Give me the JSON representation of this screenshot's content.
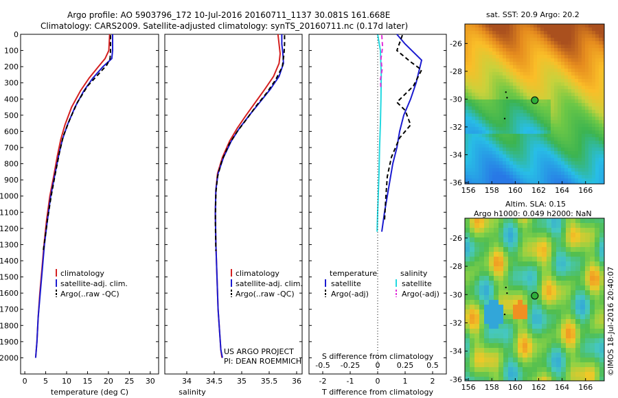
{
  "header": {
    "line1": "Argo profile: AO 5903796_172 10-Jul-2016 20160711_1137 30.081S 161.668E",
    "line2": "Climatology: CARS2009. Satellite-adjusted climatology: synTS_20160711.nc (0.17d later)"
  },
  "colors": {
    "climatology": "#d42020",
    "satellite": "#1a1ad0",
    "argo": "#000000",
    "sal_satellite": "#22d8e0",
    "sal_argo": "#e030d8"
  },
  "chart_data": [
    {
      "type": "line",
      "panel": "temperature",
      "xlabel": "temperature (deg C)",
      "ylabel": "",
      "xlim": [
        -1,
        32
      ],
      "ylim": [
        2100,
        0
      ],
      "xticks": [
        0,
        5,
        10,
        15,
        20,
        25,
        30
      ],
      "yticks": [
        0,
        100,
        200,
        300,
        400,
        500,
        600,
        700,
        800,
        900,
        1000,
        1100,
        1200,
        1300,
        1400,
        1500,
        1600,
        1700,
        1800,
        1900,
        2000
      ],
      "legend": [
        "climatology",
        "satellite-adj. clim.",
        "Argo(..raw -QC)"
      ],
      "series": [
        {
          "name": "climatology",
          "x": [
            20.3,
            20.1,
            19.2,
            17.6,
            15.4,
            13.3,
            11.2,
            9.6,
            8.6,
            7.8,
            6.9,
            6.0,
            5.2,
            4.6,
            4.1,
            3.6,
            3.2,
            2.9,
            2.6
          ],
          "y": [
            0,
            100,
            150,
            200,
            270,
            350,
            450,
            560,
            650,
            750,
            880,
            1000,
            1150,
            1300,
            1450,
            1600,
            1750,
            1900,
            2000
          ]
        },
        {
          "name": "satellite-adj. clim.",
          "x": [
            21.0,
            21.0,
            20.8,
            18.7,
            16.3,
            14.1,
            12.0,
            10.2,
            9.0,
            8.1,
            7.1,
            6.2,
            5.4,
            4.7,
            4.2,
            3.7,
            3.2,
            2.9,
            2.6
          ],
          "y": [
            0,
            100,
            150,
            200,
            270,
            350,
            450,
            560,
            650,
            750,
            880,
            1000,
            1150,
            1300,
            1450,
            1600,
            1750,
            1900,
            2000
          ]
        },
        {
          "name": "Argo(..raw -QC)",
          "x": [
            20.5,
            20.5,
            20.4,
            19.6,
            17.5,
            15.0,
            12.6,
            10.7,
            9.2,
            8.3,
            7.3,
            6.3,
            5.4,
            4.8,
            4.4
          ],
          "y": [
            5,
            100,
            150,
            190,
            250,
            320,
            420,
            530,
            630,
            730,
            860,
            1000,
            1150,
            1270,
            1340
          ]
        }
      ]
    },
    {
      "type": "line",
      "panel": "salinity",
      "xlabel": "salinity",
      "ylabel": "",
      "xlim": [
        33.6,
        36.1
      ],
      "ylim": [
        2100,
        0
      ],
      "xticks": [
        34,
        34.5,
        35,
        35.5,
        36
      ],
      "legend": [
        "climatology",
        "satellite-adj. clim.",
        "Argo(..raw -QC)"
      ],
      "series": [
        {
          "name": "climatology",
          "x": [
            35.66,
            35.68,
            35.7,
            35.68,
            35.58,
            35.42,
            35.25,
            35.08,
            34.92,
            34.78,
            34.65,
            34.56,
            34.53,
            34.52,
            34.53,
            34.55,
            34.57,
            34.6,
            34.62,
            34.64
          ],
          "y": [
            0,
            60,
            120,
            180,
            260,
            340,
            420,
            500,
            580,
            660,
            760,
            860,
            960,
            1100,
            1300,
            1500,
            1700,
            1850,
            1950,
            2000
          ]
        },
        {
          "name": "satellite-adj. clim.",
          "x": [
            35.73,
            35.73,
            35.75,
            35.76,
            35.68,
            35.52,
            35.33,
            35.14,
            34.96,
            34.81,
            34.67,
            34.57,
            34.53,
            34.52,
            34.53,
            34.55,
            34.57,
            34.6,
            34.62,
            34.65
          ],
          "y": [
            0,
            60,
            120,
            180,
            260,
            340,
            420,
            500,
            580,
            660,
            760,
            860,
            960,
            1100,
            1300,
            1500,
            1700,
            1850,
            1950,
            2000
          ]
        },
        {
          "name": "Argo(..raw -QC)",
          "x": [
            35.78,
            35.78,
            35.77,
            35.74,
            35.62,
            35.46,
            35.27,
            35.1,
            34.92,
            34.77,
            34.64,
            34.56,
            34.53,
            34.52,
            34.53
          ],
          "y": [
            5,
            60,
            120,
            200,
            280,
            360,
            440,
            520,
            600,
            680,
            780,
            880,
            980,
            1150,
            1340
          ]
        }
      ],
      "annotations": [
        "US ARGO PROJECT",
        "PI: DEAN ROEMMICH"
      ]
    },
    {
      "type": "line",
      "panel": "difference",
      "xlabel": "T difference from climatology",
      "xlabel_top": "S difference from climatology",
      "xlim": [
        -2.5,
        2.5
      ],
      "ylim": [
        2100,
        0
      ],
      "xticks": [
        -2,
        -1,
        0,
        1,
        2
      ],
      "xtick_labels": [
        "-2",
        "-1",
        "0",
        "1",
        "2"
      ],
      "sticks": [
        -0.5,
        -0.25,
        0,
        0.25,
        0.5
      ],
      "stick_labels": [
        "-0.5",
        "-0.25",
        "0",
        "0.25",
        "0.5"
      ],
      "legend": [
        {
          "group": "temperature",
          "items": [
            "satellite",
            "Argo(-adj)"
          ]
        },
        {
          "group": "salinity",
          "items": [
            "satellite",
            "Argo(-adj)"
          ]
        }
      ],
      "series": [
        {
          "name": "T satellite",
          "x": [
            0.7,
            1.0,
            1.6,
            1.4,
            1.2,
            0.95,
            0.8,
            0.7,
            0.55,
            0.45,
            0.35,
            0.25,
            0.15
          ],
          "y": [
            0,
            60,
            160,
            300,
            400,
            500,
            600,
            700,
            800,
            900,
            1000,
            1100,
            1220
          ]
        },
        {
          "name": "T Argo(-adj)",
          "x": [
            0.9,
            0.7,
            1.2,
            1.6,
            1.3,
            0.7,
            1.0,
            1.2,
            0.8,
            0.5,
            0.35,
            0.3,
            0.25
          ],
          "y": [
            5,
            100,
            170,
            220,
            320,
            420,
            470,
            560,
            640,
            760,
            880,
            1000,
            1150
          ]
        },
        {
          "name": "S satellite",
          "x": [
            0.0,
            0.1,
            0.13,
            0.12,
            0.1,
            0.07,
            0.05,
            0.02,
            0.0,
            -0.02
          ],
          "y": [
            0,
            100,
            250,
            400,
            550,
            700,
            850,
            1000,
            1100,
            1220
          ]
        },
        {
          "name": "S Argo(-adj)",
          "x": [
            0.15,
            0.18,
            0.12,
            0.16,
            0.1,
            0.12
          ],
          "y": [
            5,
            80,
            150,
            220,
            280,
            340
          ]
        }
      ]
    }
  ],
  "maps": {
    "sst": {
      "title": "sat. SST: 20.9 Argo: 20.2"
    },
    "sla": {
      "title_line1": "Altim. SLA: 0.15",
      "title_line2": "Argo h1000: 0.049 h2000: NaN"
    },
    "xlim": [
      155.7,
      167.6
    ],
    "ylim": [
      -36.1,
      -24.6
    ],
    "xticks": [
      156,
      158,
      160,
      162,
      164,
      166
    ],
    "yticks": [
      -26,
      -28,
      -30,
      -32,
      -34,
      -36
    ],
    "float_position": {
      "lon": 161.668,
      "lat": -30.081
    },
    "track": [
      {
        "lon": 159.2,
        "lat": -29.5
      },
      {
        "lon": 159.3,
        "lat": -29.9
      },
      {
        "lon": 159.1,
        "lat": -31.4
      }
    ]
  },
  "copyright": "©IMOS 18-Jul-2016 20:40:07"
}
